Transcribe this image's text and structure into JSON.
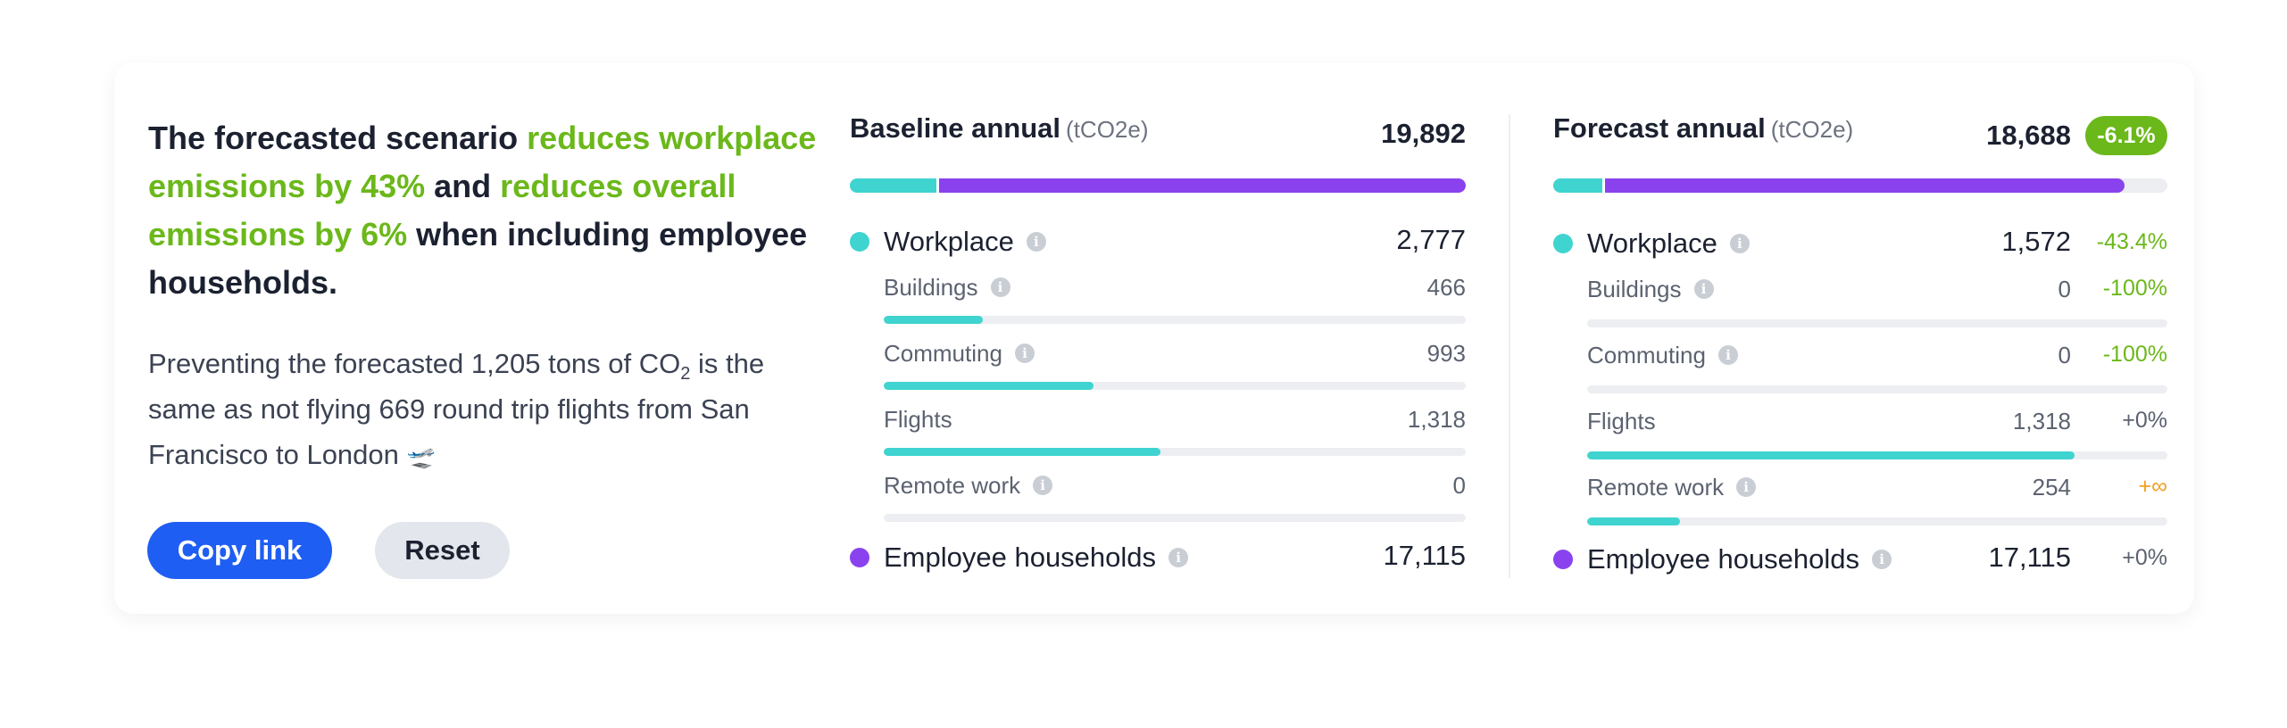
{
  "summary": {
    "p1": "The forecasted scenario ",
    "hl1": "reduces workplace emissions by 43%",
    "p2": " and ",
    "hl2": "reduces overall emissions by 6%",
    "p3": " when including employee households."
  },
  "equivalence": {
    "p1": "Preventing the forecasted 1,205 tons of CO",
    "sub": "2",
    "p2": " is the same as not flying 669 round trip flights from San Francisco to London",
    "icon": "airplane-departure-icon",
    "glyph": "🛫"
  },
  "buttons": {
    "copy_link": "Copy link",
    "reset": "Reset"
  },
  "colors": {
    "workplace": "#3fd4d0",
    "households": "#8a42ee",
    "positive": "#6bb81a",
    "primary": "#1f5ef3",
    "infinite": "#f0a020"
  },
  "baseline": {
    "title": "Baseline annual",
    "unit": "(tCO2e)",
    "total": "19,892",
    "stack_fraction": {
      "workplace": 0.14,
      "households": 0.86
    },
    "workplace": {
      "label": "Workplace",
      "value": "2,777"
    },
    "subs": [
      {
        "label": "Buildings",
        "value": "466",
        "fill": 0.17
      },
      {
        "label": "Commuting",
        "value": "993",
        "fill": 0.36
      },
      {
        "label": "Flights",
        "value": "1,318",
        "fill": 0.475
      },
      {
        "label": "Remote work",
        "value": "0",
        "fill": 0
      }
    ],
    "households": {
      "label": "Employee households",
      "value": "17,115"
    }
  },
  "forecast": {
    "title": "Forecast annual",
    "unit": "(tCO2e)",
    "total": "18,688",
    "change": "-6.1%",
    "stack_fraction": {
      "workplace": 0.08,
      "households": 0.85
    },
    "workplace": {
      "label": "Workplace",
      "value": "1,572",
      "change": "-43.4%"
    },
    "subs": [
      {
        "label": "Buildings",
        "value": "0",
        "change": "-100%",
        "tone": "green",
        "fill": 0
      },
      {
        "label": "Commuting",
        "value": "0",
        "change": "-100%",
        "tone": "green",
        "fill": 0
      },
      {
        "label": "Flights",
        "value": "1,318",
        "change": "+0%",
        "tone": "gray",
        "fill": 0.84
      },
      {
        "label": "Remote work",
        "value": "254",
        "change": "+∞",
        "tone": "orange",
        "fill": 0.16
      }
    ],
    "households": {
      "label": "Employee households",
      "value": "17,115",
      "change": "+0%"
    }
  }
}
